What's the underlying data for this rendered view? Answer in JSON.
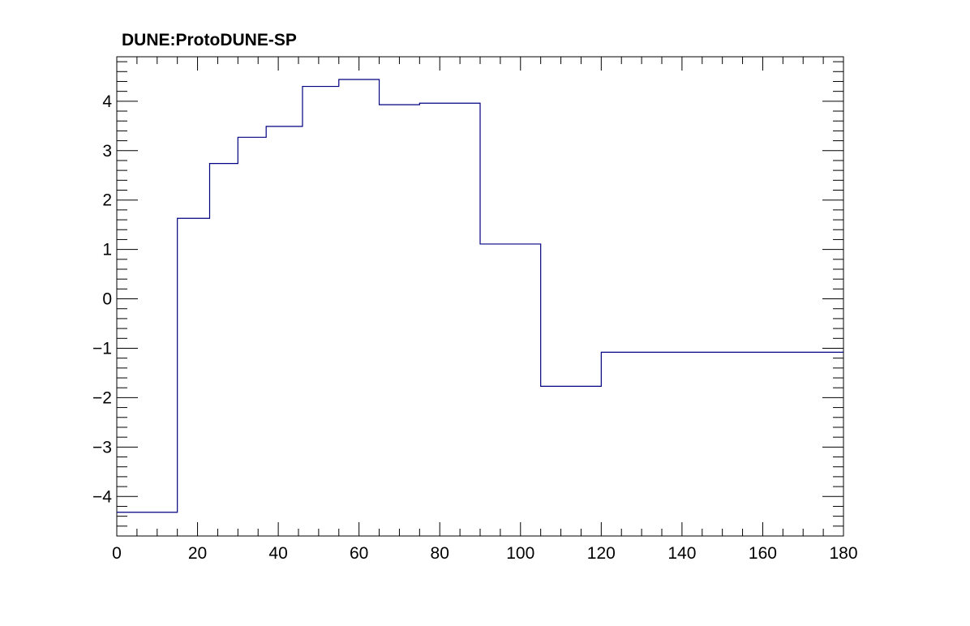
{
  "chart_data": {
    "type": "line",
    "style": "step-histogram",
    "title": "DUNE:ProtoDUNE-SP",
    "xlabel": "",
    "ylabel": "",
    "xlim": [
      0,
      180
    ],
    "ylim": [
      -4.8,
      4.9
    ],
    "grid": false,
    "x_ticks": [
      0,
      20,
      40,
      60,
      80,
      100,
      120,
      140,
      160,
      180
    ],
    "x_tick_labels": [
      "0",
      "20",
      "40",
      "60",
      "80",
      "100",
      "120",
      "140",
      "160",
      "180"
    ],
    "y_ticks": [
      -4,
      -3,
      -2,
      -1,
      0,
      1,
      2,
      3,
      4
    ],
    "y_tick_labels": [
      "−4",
      "−3",
      "−2",
      "−1",
      "0",
      "1",
      "2",
      "3",
      "4"
    ],
    "line_color": "#000080",
    "bins": [
      {
        "x_low": 0,
        "x_high": 15,
        "value": -4.32
      },
      {
        "x_low": 15,
        "x_high": 23,
        "value": 1.63
      },
      {
        "x_low": 23,
        "x_high": 30,
        "value": 2.74
      },
      {
        "x_low": 30,
        "x_high": 37,
        "value": 3.27
      },
      {
        "x_low": 37,
        "x_high": 46,
        "value": 3.49
      },
      {
        "x_low": 46,
        "x_high": 55,
        "value": 4.3
      },
      {
        "x_low": 55,
        "x_high": 65,
        "value": 4.44
      },
      {
        "x_low": 65,
        "x_high": 75,
        "value": 3.93
      },
      {
        "x_low": 75,
        "x_high": 90,
        "value": 3.96
      },
      {
        "x_low": 90,
        "x_high": 105,
        "value": 1.11
      },
      {
        "x_low": 105,
        "x_high": 120,
        "value": -1.77
      },
      {
        "x_low": 120,
        "x_high": 180,
        "value": -1.08
      }
    ]
  }
}
